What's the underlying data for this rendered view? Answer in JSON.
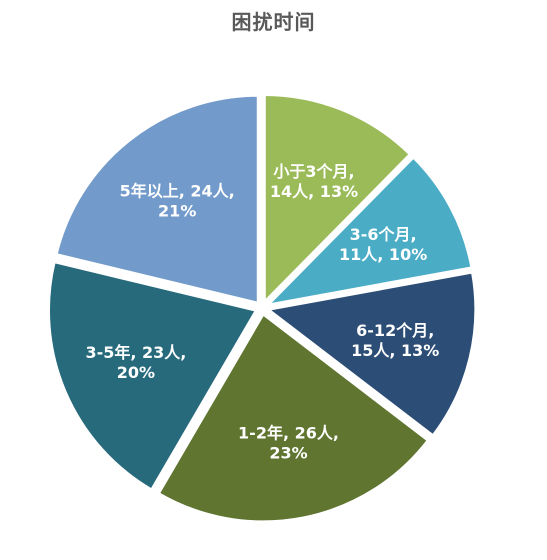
{
  "chart_data": {
    "type": "pie",
    "title": "困扰时间",
    "slices": [
      {
        "label": "小于3个月",
        "value": 14,
        "percent": "13%",
        "color": "#9BBB59",
        "label_lines": [
          "小于3个月,",
          "14人, 13%"
        ]
      },
      {
        "label": "3-6个月",
        "value": 11,
        "percent": "10%",
        "color": "#4BACC6",
        "label_lines": [
          "3-6个月,",
          "11人, 10%"
        ]
      },
      {
        "label": "6-12个月",
        "value": 15,
        "percent": "13%",
        "color": "#2C4D75",
        "label_lines": [
          "6-12个月,",
          "15人, 13%"
        ]
      },
      {
        "label": "1-2年",
        "value": 26,
        "percent": "23%",
        "color": "#5F7530",
        "label_lines": [
          "1-2年, 26人,",
          "23%"
        ]
      },
      {
        "label": "3-5年",
        "value": 23,
        "percent": "20%",
        "color": "#276A7C",
        "label_lines": [
          "3-5年, 23人,",
          "20%"
        ]
      },
      {
        "label": "5年以上",
        "value": 24,
        "percent": "21%",
        "color": "#729ACA",
        "label_lines": [
          "5年以上, 24人,",
          "21%"
        ]
      }
    ]
  }
}
